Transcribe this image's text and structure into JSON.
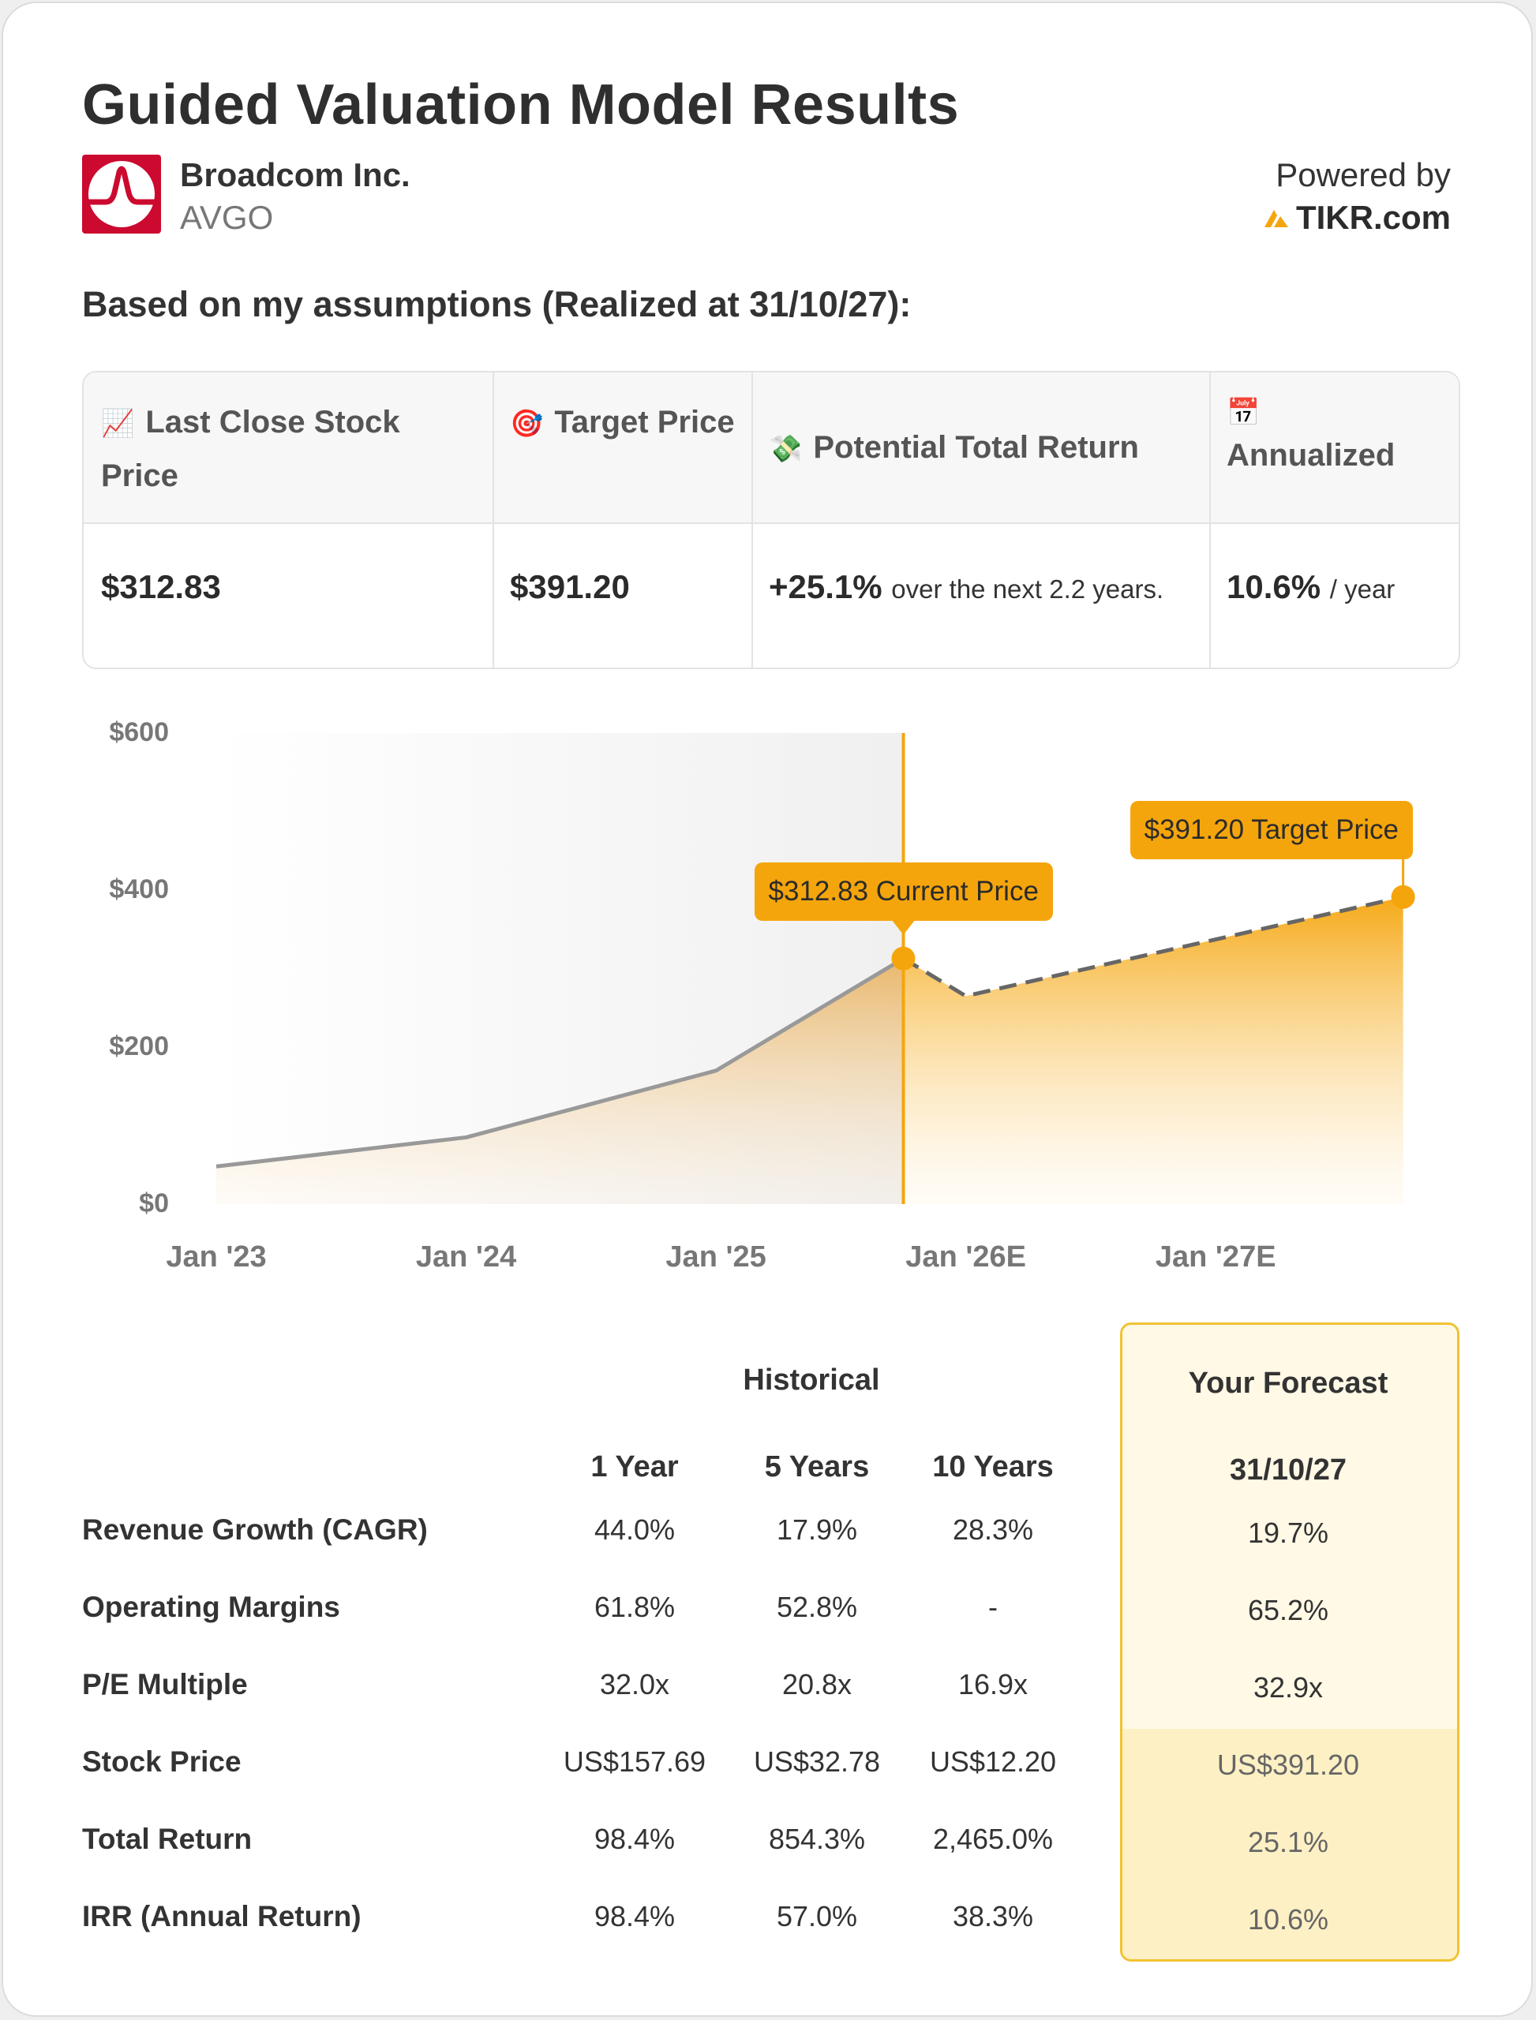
{
  "header": {
    "title": "Guided Valuation Model Results",
    "company": "Broadcom Inc.",
    "ticker": "AVGO",
    "powered_by": "Powered by",
    "brand": "TIKR.com",
    "logo_icon": "broadcom-logo-icon",
    "brand_icon": "tikr-logo-icon",
    "logo_color": "#cc092f",
    "brand_color": "#f5a50c"
  },
  "assumptions": "Based on my assumptions (Realized at 31/10/27):",
  "summary": {
    "headers": [
      {
        "icon": "📈",
        "label": "Last Close Stock Price"
      },
      {
        "icon": "🎯",
        "label": "Target Price"
      },
      {
        "icon": "💸",
        "label": "Potential Total Return"
      },
      {
        "icon": "📅",
        "label": "Annualized"
      }
    ],
    "last_close": "$312.83",
    "target": "$391.20",
    "total_return": "+25.1%",
    "total_return_note": "over the next 2.2 years.",
    "annualized": "10.6%",
    "annualized_note": "/ year"
  },
  "chart_data": {
    "type": "area",
    "y_ticks": [
      "$600",
      "$400",
      "$200",
      "$0"
    ],
    "ylim": [
      0,
      600
    ],
    "x_ticks": [
      "Jan '23",
      "Jan '24",
      "Jan '25",
      "Jan '26E",
      "Jan '27E"
    ],
    "xlim": [
      "2023-01",
      "2027-11"
    ],
    "historical": {
      "x": [
        "2023-01",
        "2024-01",
        "2025-01",
        "2025-10"
      ],
      "values": [
        48,
        85,
        170,
        312.83
      ]
    },
    "forecast": {
      "x": [
        "2025-10",
        "2026-01",
        "2027-10"
      ],
      "values": [
        312.83,
        265,
        391.2
      ]
    },
    "current_price_label": "$312.83 Current Price",
    "target_price_label": "$391.20 Target Price",
    "accent_color": "#f5a50c",
    "line_color": "#999999",
    "forecast_line_color": "#666666"
  },
  "metrics": {
    "historical_label": "Historical",
    "forecast_label": "Your Forecast",
    "columns": [
      "1 Year",
      "5 Years",
      "10 Years"
    ],
    "forecast_date": "31/10/27",
    "rows": [
      {
        "label": "Revenue Growth (CAGR)",
        "values": [
          "44.0%",
          "17.9%",
          "28.3%"
        ],
        "forecast": "19.7%"
      },
      {
        "label": "Operating Margins",
        "values": [
          "61.8%",
          "52.8%",
          "-"
        ],
        "forecast": "65.2%"
      },
      {
        "label": "P/E Multiple",
        "values": [
          "32.0x",
          "20.8x",
          "16.9x"
        ],
        "forecast": "32.9x"
      },
      {
        "label": "Stock Price",
        "values": [
          "US$157.69",
          "US$32.78",
          "US$12.20"
        ],
        "forecast": "US$391.20"
      },
      {
        "label": "Total Return",
        "values": [
          "98.4%",
          "854.3%",
          "2,465.0%"
        ],
        "forecast": "25.1%"
      },
      {
        "label": "IRR (Annual Return)",
        "values": [
          "98.4%",
          "57.0%",
          "38.3%"
        ],
        "forecast": "10.6%"
      }
    ]
  }
}
